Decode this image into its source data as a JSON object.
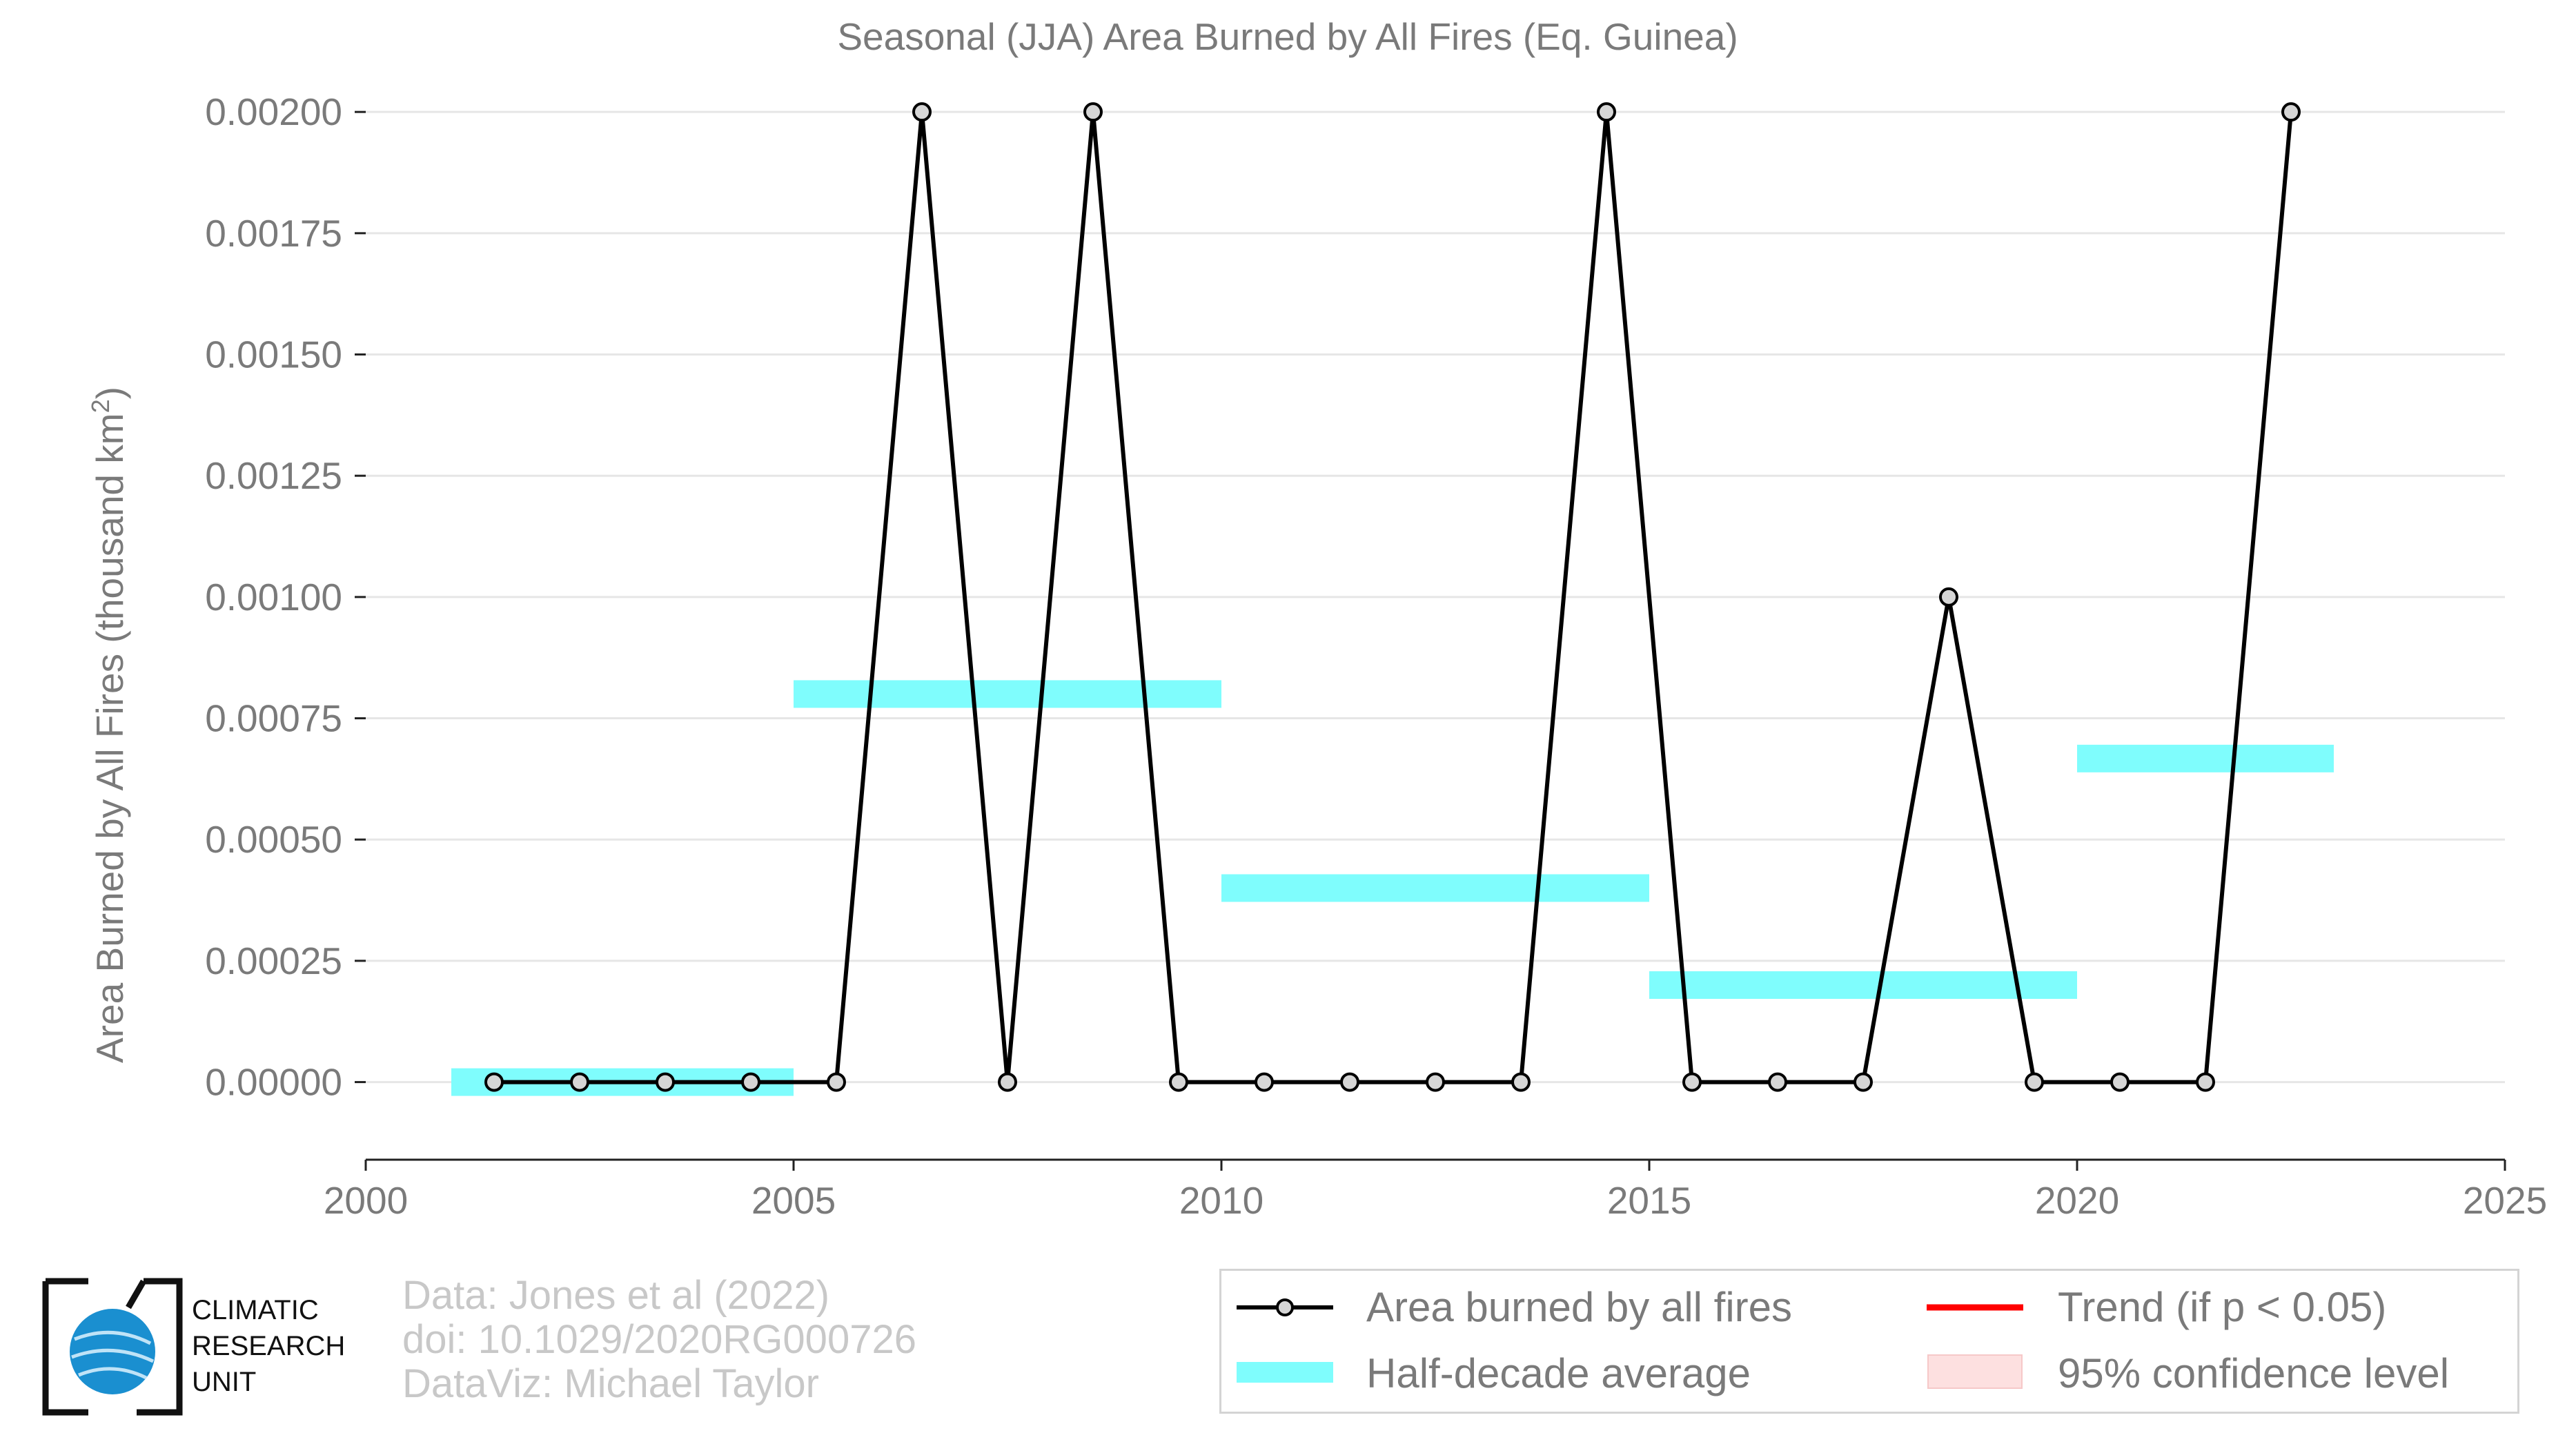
{
  "chart_data": {
    "type": "line",
    "title": "Seasonal (JJA) Area Burned by All Fires (Eq. Guinea)",
    "ylabel": "Area Burned by All Fires (thousand km",
    "ylabel_sup": "2",
    "ylabel_close": ")",
    "xlabel": "",
    "xlim": [
      2000,
      2025
    ],
    "ylim": [
      -0.00016,
      0.00206
    ],
    "x_ticks": [
      2000,
      2005,
      2010,
      2015,
      2020,
      2025
    ],
    "x_tick_labels": [
      "2000",
      "2005",
      "2010",
      "2015",
      "2020",
      "2025"
    ],
    "y_ticks": [
      0,
      0.00025,
      0.0005,
      0.00075,
      0.001,
      0.00125,
      0.0015,
      0.00175,
      0.002
    ],
    "y_tick_labels": [
      "0.00000",
      "0.00025",
      "0.00050",
      "0.00075",
      "0.00100",
      "0.00125",
      "0.00150",
      "0.00175",
      "0.00200"
    ],
    "grid": "horizontal",
    "series": [
      {
        "name": "Area burned by all fires",
        "color": "#000000",
        "marker": "circle",
        "x": [
          2001.5,
          2002.5,
          2003.5,
          2004.5,
          2005.5,
          2006.5,
          2007.5,
          2008.5,
          2009.5,
          2010.5,
          2011.5,
          2012.5,
          2013.5,
          2014.5,
          2015.5,
          2016.5,
          2017.5,
          2018.5,
          2019.5,
          2020.5,
          2021.5,
          2022.5
        ],
        "values": [
          0,
          0,
          0,
          0,
          0,
          0.002,
          0,
          0.002,
          0,
          0,
          0,
          0,
          0,
          0.002,
          0,
          0,
          0,
          0.001,
          0,
          0,
          0,
          0.002
        ]
      }
    ],
    "half_decade_averages": {
      "name": "Half-decade average",
      "color": "#7ffdfd",
      "segments": [
        {
          "x0": 2001,
          "x1": 2005,
          "value": 0
        },
        {
          "x0": 2005,
          "x1": 2010,
          "value": 0.0008
        },
        {
          "x0": 2010,
          "x1": 2015,
          "value": 0.0004
        },
        {
          "x0": 2015,
          "x1": 2020,
          "value": 0.0002
        },
        {
          "x0": 2020,
          "x1": 2023,
          "value": 0.000667
        }
      ]
    },
    "legend": {
      "placement": "bottom-right",
      "entries": [
        {
          "label": "Area burned by all fires",
          "key": "line-marker",
          "color": "#000000"
        },
        {
          "label": "Trend (if p < 0.05)",
          "key": "line",
          "color": "#ff0000"
        },
        {
          "label": "Half-decade average",
          "key": "band",
          "color": "#7ffdfd"
        },
        {
          "label": "95% confidence level",
          "key": "fill",
          "color": "#fde0e0"
        }
      ]
    }
  },
  "credits": {
    "line1": "Data: Jones et al (2022)",
    "line2": "doi: 10.1029/2020RG000726",
    "line3": "DataViz: Michael Taylor"
  },
  "logo": {
    "line1": "CLIMATIC",
    "line2": "RESEARCH",
    "line3": "UNIT",
    "icon": "globe-icon"
  }
}
